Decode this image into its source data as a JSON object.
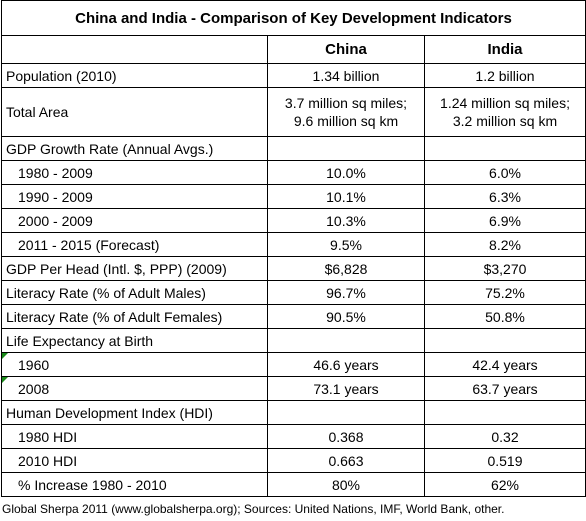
{
  "title": "China and India - Comparison of Key Development Indicators",
  "columns": [
    "China",
    "India"
  ],
  "rows": [
    {
      "label": "Population (2010)",
      "values": [
        "1.34 billion",
        "1.2 billion"
      ]
    },
    {
      "label": "Total Area",
      "values": [
        [
          "3.7 million sq miles;",
          "9.6 million sq km"
        ],
        [
          "1.24 million sq miles;",
          "3.2 million sq km"
        ]
      ]
    },
    {
      "label": "GDP Growth Rate (Annual Avgs.)",
      "rows": [
        {
          "label": "1980 - 2009",
          "values": [
            "10.0%",
            "6.0%"
          ]
        },
        {
          "label": "1990 - 2009",
          "values": [
            "10.1%",
            "6.3%"
          ]
        },
        {
          "label": "2000 - 2009",
          "values": [
            "10.3%",
            "6.9%"
          ]
        },
        {
          "label": "2011 - 2015 (Forecast)",
          "values": [
            "9.5%",
            "8.2%"
          ]
        }
      ]
    },
    {
      "label": "GDP Per Head (Intl. $, PPP) (2009)",
      "values": [
        "$6,828",
        "$3,270"
      ]
    },
    {
      "label": "Literacy Rate (% of Adult Males)",
      "values": [
        "96.7%",
        "75.2%"
      ]
    },
    {
      "label": "Literacy Rate (% of Adult Females)",
      "values": [
        "90.5%",
        "50.8%"
      ]
    },
    {
      "label": "Life Expectancy at Birth",
      "rows": [
        {
          "label": "1960",
          "values": [
            "46.6 years",
            "42.4 years"
          ]
        },
        {
          "label": "2008",
          "values": [
            "73.1 years",
            "63.7 years"
          ]
        }
      ]
    },
    {
      "label": "Human Development Index (HDI)",
      "rows": [
        {
          "label": "1980 HDI",
          "values": [
            "0.368",
            "0.32"
          ]
        },
        {
          "label": "2010 HDI",
          "values": [
            "0.663",
            "0.519"
          ]
        },
        {
          "label": "% Increase 1980 - 2010",
          "values": [
            "80%",
            "62%"
          ]
        }
      ]
    }
  ],
  "footer": "Global Sherpa 2011 (www.globalsherpa.org); Sources: United Nations, IMF, World Bank, other."
}
